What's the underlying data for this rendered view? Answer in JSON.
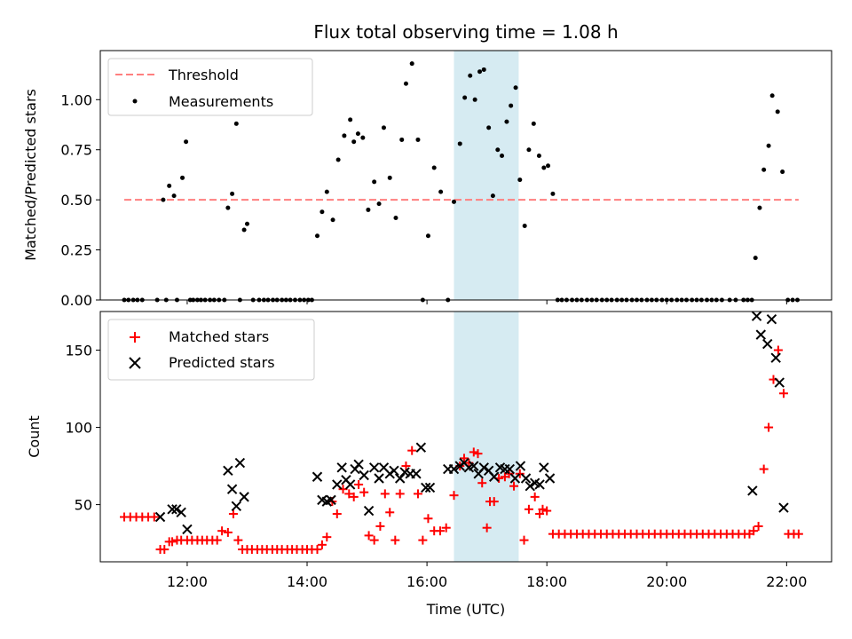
{
  "title": "Flux total observing time = 1.08 h",
  "colors": {
    "threshold": "#ff7f7f",
    "measurement": "#000000",
    "matched": "#ff0000",
    "predicted": "#000000",
    "span": "#add8e6"
  },
  "chart_data": [
    {
      "type": "scatter",
      "panel": "top",
      "ylabel": "Matched/Predicted stars",
      "xlabel": "",
      "xlim": [
        10.55,
        22.75
      ],
      "ylim": [
        0,
        1.245
      ],
      "yticks": [
        0,
        0.25,
        0.5,
        0.75,
        1.0
      ],
      "ytick_labels": [
        "0.00",
        "0.25",
        "0.50",
        "0.75",
        "1.00"
      ],
      "xticks": [
        12,
        14,
        16,
        18,
        20,
        22
      ],
      "highlight_span": [
        16.45,
        17.53
      ],
      "legend_position": "top-left",
      "threshold": {
        "name": "Threshold",
        "y": 0.5,
        "x_range": [
          10.95,
          22.2
        ]
      },
      "series": [
        {
          "name": "Measurements",
          "x": [
            10.95,
            11.02,
            11.1,
            11.17,
            11.25,
            11.5,
            11.6,
            11.65,
            11.7,
            11.78,
            11.83,
            11.92,
            11.98,
            12.05,
            12.1,
            12.17,
            12.23,
            12.3,
            12.38,
            12.45,
            12.53,
            12.62,
            12.68,
            12.75,
            12.82,
            12.88,
            12.95,
            13.0,
            13.1,
            13.2,
            13.28,
            13.35,
            13.43,
            13.5,
            13.58,
            13.65,
            13.72,
            13.8,
            13.88,
            13.95,
            14.02,
            14.08,
            14.17,
            14.25,
            14.33,
            14.43,
            14.52,
            14.62,
            14.72,
            14.78,
            14.85,
            14.93,
            15.02,
            15.12,
            15.2,
            15.28,
            15.38,
            15.48,
            15.58,
            15.65,
            15.75,
            15.85,
            15.93,
            16.02,
            16.12,
            16.23,
            16.35,
            16.45,
            16.55,
            16.63,
            16.72,
            16.8,
            16.88,
            16.95,
            17.03,
            17.1,
            17.18,
            17.25,
            17.33,
            17.4,
            17.48,
            17.55,
            17.63,
            17.7,
            17.78,
            17.87,
            17.95,
            18.02,
            18.1,
            18.18,
            18.25,
            18.33,
            18.42,
            18.5,
            18.58,
            18.67,
            18.75,
            18.83,
            18.92,
            19.0,
            19.08,
            19.17,
            19.25,
            19.33,
            19.42,
            19.5,
            19.58,
            19.67,
            19.75,
            19.83,
            19.92,
            20.0,
            20.08,
            20.17,
            20.25,
            20.33,
            20.42,
            20.5,
            20.58,
            20.67,
            20.75,
            20.83,
            20.92,
            21.05,
            21.15,
            21.28,
            21.35,
            21.42,
            21.48,
            21.55,
            21.62,
            21.7,
            21.76,
            21.85,
            21.93,
            22.02,
            22.1,
            22.18
          ],
          "y": [
            0,
            0,
            0,
            0,
            0,
            0,
            0.5,
            0,
            0.57,
            0.52,
            0,
            0.61,
            0.79,
            0,
            0,
            0,
            0,
            0,
            0,
            0,
            0,
            0,
            0.46,
            0.53,
            0.88,
            0,
            0.35,
            0.38,
            0,
            0,
            0,
            0,
            0,
            0,
            0,
            0,
            0,
            0,
            0,
            0,
            0,
            0,
            0.32,
            0.44,
            0.54,
            0.4,
            0.7,
            0.82,
            0.9,
            0.79,
            0.83,
            0.81,
            0.45,
            0.59,
            0.48,
            0.86,
            0.61,
            0.41,
            0.8,
            1.08,
            1.18,
            0.8,
            0,
            0.32,
            0.66,
            0.54,
            0,
            0.49,
            0.78,
            1.01,
            1.12,
            1.0,
            1.14,
            1.15,
            0.86,
            0.52,
            0.75,
            0.72,
            0.89,
            0.97,
            1.06,
            0.6,
            0.37,
            0.75,
            0.88,
            0.72,
            0.66,
            0.67,
            0.53,
            0,
            0,
            0,
            0,
            0,
            0,
            0,
            0,
            0,
            0,
            0,
            0,
            0,
            0,
            0,
            0,
            0,
            0,
            0,
            0,
            0,
            0,
            0,
            0,
            0,
            0,
            0,
            0,
            0,
            0,
            0,
            0,
            0,
            0,
            0,
            0,
            0,
            0,
            0,
            0.21,
            0.46,
            0.65,
            0.77,
            1.02,
            0.94,
            0.64,
            0,
            0,
            0
          ]
        }
      ]
    },
    {
      "type": "scatter",
      "panel": "bottom",
      "ylabel": "Count",
      "xlabel": "Time (UTC)",
      "xlim": [
        10.55,
        22.75
      ],
      "ylim": [
        13,
        175
      ],
      "yticks": [
        50,
        100,
        150
      ],
      "ytick_labels": [
        "50",
        "100",
        "150"
      ],
      "xticks": [
        12,
        14,
        16,
        18,
        20,
        22
      ],
      "xtick_labels": [
        "12:00",
        "14:00",
        "16:00",
        "18:00",
        "20:00",
        "22:00"
      ],
      "highlight_span": [
        16.45,
        17.53
      ],
      "legend_position": "top-left",
      "series": [
        {
          "name": "Matched stars",
          "marker": "plus",
          "x": [
            10.95,
            11.05,
            11.15,
            11.25,
            11.35,
            11.45,
            11.55,
            11.62,
            11.7,
            11.75,
            11.83,
            11.9,
            12.0,
            12.08,
            12.17,
            12.25,
            12.33,
            12.42,
            12.5,
            12.58,
            12.68,
            12.77,
            12.85,
            12.92,
            13.0,
            13.08,
            13.17,
            13.25,
            13.33,
            13.42,
            13.5,
            13.58,
            13.67,
            13.75,
            13.83,
            13.92,
            14.0,
            14.08,
            14.17,
            14.25,
            14.33,
            14.42,
            14.5,
            14.6,
            14.7,
            14.78,
            14.86,
            14.95,
            15.03,
            15.12,
            15.22,
            15.3,
            15.38,
            15.47,
            15.55,
            15.65,
            15.75,
            15.85,
            15.93,
            16.02,
            16.12,
            16.22,
            16.32,
            16.45,
            16.55,
            16.62,
            16.7,
            16.78,
            16.85,
            16.92,
            17.0,
            17.05,
            17.12,
            17.2,
            17.3,
            17.37,
            17.45,
            17.55,
            17.62,
            17.7,
            17.8,
            17.88,
            17.93,
            18.0,
            18.1,
            18.2,
            18.3,
            18.4,
            18.5,
            18.6,
            18.7,
            18.8,
            18.9,
            19.0,
            19.1,
            19.2,
            19.3,
            19.4,
            19.5,
            19.6,
            19.7,
            19.8,
            19.9,
            20.0,
            20.1,
            20.2,
            20.3,
            20.4,
            20.5,
            20.6,
            20.7,
            20.8,
            20.9,
            21.0,
            21.1,
            21.2,
            21.3,
            21.38,
            21.45,
            21.53,
            21.62,
            21.7,
            21.78,
            21.86,
            21.95,
            22.03,
            22.12,
            22.2
          ],
          "y": [
            42,
            42,
            42,
            42,
            42,
            42,
            21,
            21,
            26,
            26,
            27,
            27,
            27,
            27,
            27,
            27,
            27,
            27,
            27,
            33,
            32,
            44,
            27,
            21,
            21,
            21,
            21,
            21,
            21,
            21,
            21,
            21,
            21,
            21,
            21,
            21,
            21,
            21,
            21,
            24,
            29,
            52,
            44,
            60,
            57,
            55,
            63,
            58,
            30,
            27,
            36,
            57,
            45,
            27,
            57,
            75,
            85,
            57,
            27,
            41,
            33,
            33,
            35,
            56,
            75,
            80,
            77,
            84,
            83,
            64,
            35,
            52,
            52,
            67,
            68,
            70,
            62,
            70,
            27,
            47,
            55,
            44,
            47,
            46,
            31,
            31,
            31,
            31,
            31,
            31,
            31,
            31,
            31,
            31,
            31,
            31,
            31,
            31,
            31,
            31,
            31,
            31,
            31,
            31,
            31,
            31,
            31,
            31,
            31,
            31,
            31,
            31,
            31,
            31,
            31,
            31,
            31,
            31,
            33,
            36,
            73,
            100,
            131,
            150,
            122,
            31,
            31,
            31
          ]
        },
        {
          "name": "Predicted stars",
          "marker": "x",
          "x": [
            11.55,
            11.75,
            11.82,
            11.9,
            12.0,
            12.68,
            12.75,
            12.82,
            12.88,
            12.95,
            14.17,
            14.25,
            14.33,
            14.4,
            14.5,
            14.58,
            14.65,
            14.72,
            14.8,
            14.86,
            14.95,
            15.03,
            15.12,
            15.2,
            15.28,
            15.38,
            15.45,
            15.55,
            15.63,
            15.72,
            15.82,
            15.9,
            15.98,
            16.05,
            16.35,
            16.45,
            16.55,
            16.62,
            16.7,
            16.78,
            16.86,
            16.95,
            17.03,
            17.12,
            17.22,
            17.3,
            17.38,
            17.47,
            17.56,
            17.65,
            17.72,
            17.8,
            17.88,
            17.95,
            18.05,
            21.43,
            21.5,
            21.57,
            21.68,
            21.75,
            21.82,
            21.88,
            21.95
          ],
          "y": [
            42,
            47,
            47,
            45,
            34,
            72,
            60,
            49,
            77,
            55,
            68,
            53,
            52,
            53,
            63,
            74,
            66,
            63,
            73,
            76,
            69,
            46,
            74,
            67,
            74,
            70,
            72,
            67,
            71,
            70,
            70,
            87,
            61,
            61,
            73,
            73,
            75,
            77,
            74,
            75,
            70,
            74,
            72,
            68,
            74,
            73,
            73,
            67,
            75,
            67,
            62,
            64,
            63,
            74,
            67,
            59,
            172,
            160,
            154,
            170,
            145,
            129,
            48
          ]
        }
      ]
    }
  ]
}
